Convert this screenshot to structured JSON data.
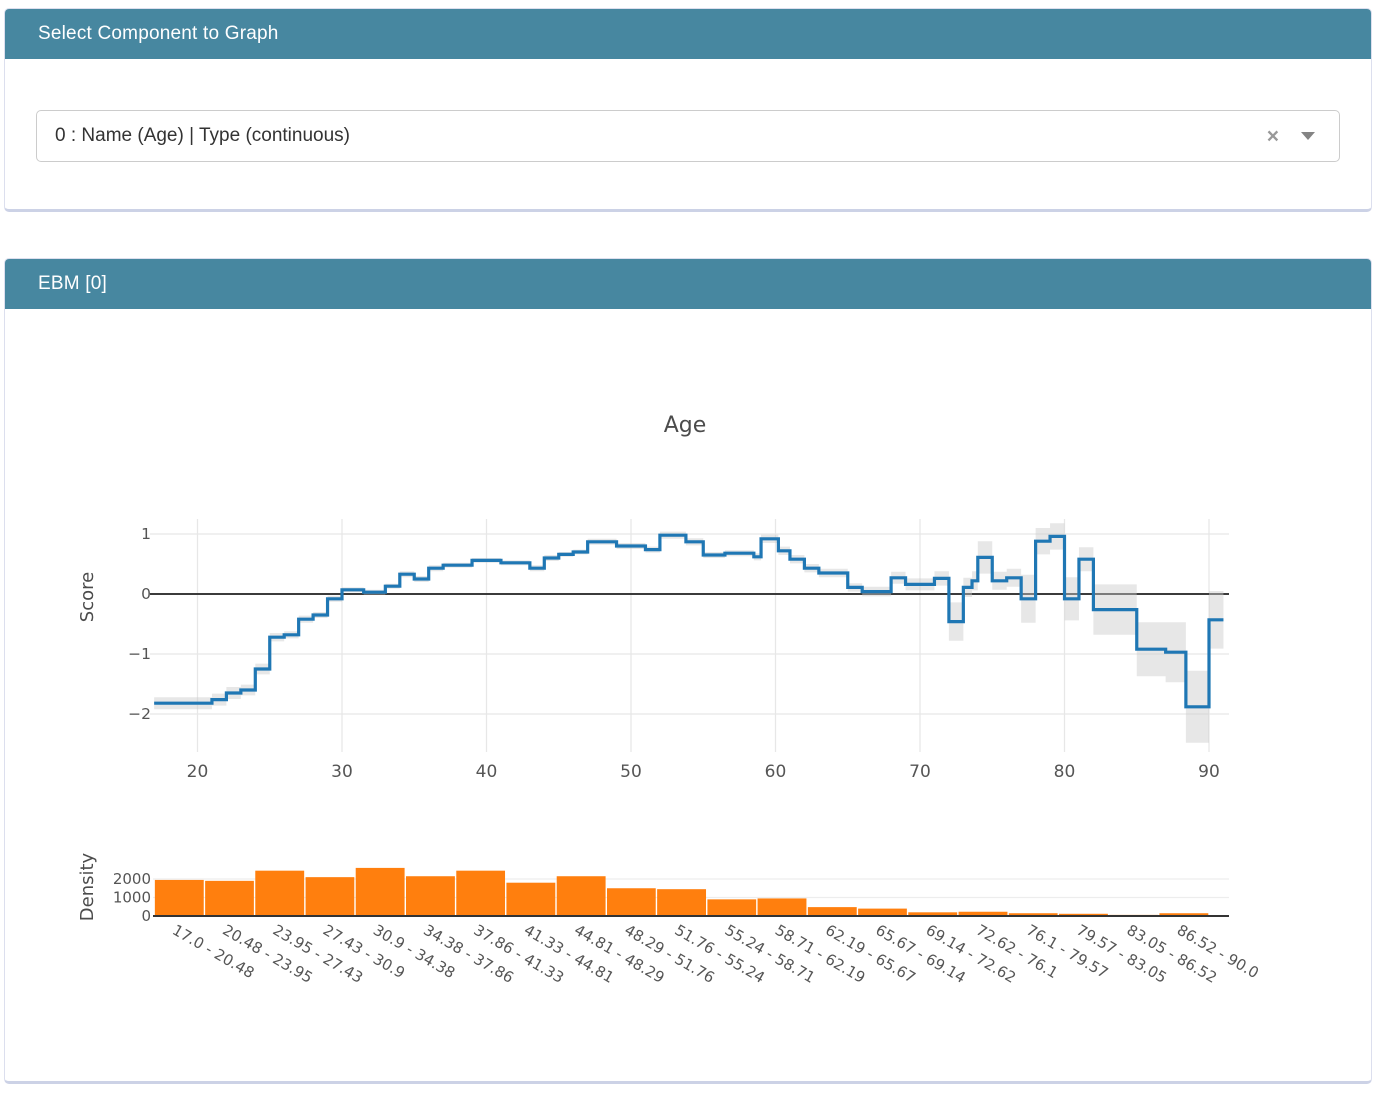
{
  "select_panel": {
    "title": "Select Component to Graph",
    "dropdown": {
      "value": "0 : Name (Age) | Type (continuous)",
      "clear_label": "×"
    }
  },
  "ebm_panel": {
    "title": "EBM [0]"
  },
  "colors": {
    "header_bg": "#4787a0",
    "line": "#1f77b4",
    "error_band": "#c9c9c9",
    "bar": "#ff7f0e",
    "zero_line": "#3b3b3b",
    "grid": "#e7e7e7",
    "axis_text": "#555555",
    "title_text": "#4c4c4c",
    "density_baseline": "#333333"
  },
  "chart_data": [
    {
      "type": "line",
      "style": "step",
      "title": "Age",
      "ylabel": "Score",
      "xticks": [
        20,
        30,
        40,
        50,
        60,
        70,
        80,
        90
      ],
      "yticks": [
        1,
        0,
        -1,
        -2
      ],
      "x_end": 91,
      "note": "steps = [x_start, score, error_half_width]; step holds until next x_start",
      "steps": [
        [
          17.0,
          -1.82,
          0.1
        ],
        [
          21.0,
          -1.76,
          0.1
        ],
        [
          22.0,
          -1.65,
          0.1
        ],
        [
          23.0,
          -1.6,
          0.09
        ],
        [
          24.0,
          -1.25,
          0.09
        ],
        [
          25.0,
          -0.72,
          0.07
        ],
        [
          26.0,
          -0.68,
          0.06
        ],
        [
          27.0,
          -0.42,
          0.06
        ],
        [
          28.0,
          -0.35,
          0.05
        ],
        [
          29.0,
          -0.08,
          0.05
        ],
        [
          30.0,
          0.07,
          0.04
        ],
        [
          31.5,
          0.03,
          0.04
        ],
        [
          33.0,
          0.13,
          0.04
        ],
        [
          34.0,
          0.33,
          0.05
        ],
        [
          35.0,
          0.25,
          0.05
        ],
        [
          36.0,
          0.43,
          0.05
        ],
        [
          37.0,
          0.48,
          0.04
        ],
        [
          39.0,
          0.56,
          0.04
        ],
        [
          41.0,
          0.52,
          0.04
        ],
        [
          43.0,
          0.43,
          0.05
        ],
        [
          44.0,
          0.6,
          0.05
        ],
        [
          45.0,
          0.66,
          0.04
        ],
        [
          46.0,
          0.7,
          0.04
        ],
        [
          47.0,
          0.87,
          0.05
        ],
        [
          49.0,
          0.8,
          0.05
        ],
        [
          51.0,
          0.74,
          0.05
        ],
        [
          52.0,
          0.98,
          0.06
        ],
        [
          53.8,
          0.87,
          0.06
        ],
        [
          55.0,
          0.65,
          0.05
        ],
        [
          56.5,
          0.68,
          0.05
        ],
        [
          58.5,
          0.62,
          0.06
        ],
        [
          59.0,
          0.92,
          0.07
        ],
        [
          60.2,
          0.72,
          0.07
        ],
        [
          61.0,
          0.58,
          0.07
        ],
        [
          62.0,
          0.43,
          0.07
        ],
        [
          63.0,
          0.35,
          0.07
        ],
        [
          65.0,
          0.11,
          0.07
        ],
        [
          66.0,
          0.04,
          0.08
        ],
        [
          68.0,
          0.27,
          0.1
        ],
        [
          69.0,
          0.16,
          0.1
        ],
        [
          71.0,
          0.26,
          0.12
        ],
        [
          72.0,
          -0.46,
          0.32
        ],
        [
          73.0,
          0.11,
          0.16
        ],
        [
          73.6,
          0.22,
          0.16
        ],
        [
          74.0,
          0.61,
          0.27
        ],
        [
          75.0,
          0.22,
          0.15
        ],
        [
          76.0,
          0.27,
          0.15
        ],
        [
          77.0,
          -0.08,
          0.4
        ],
        [
          78.0,
          0.88,
          0.22
        ],
        [
          79.0,
          0.96,
          0.22
        ],
        [
          80.0,
          -0.08,
          0.36
        ],
        [
          81.0,
          0.58,
          0.2
        ],
        [
          82.0,
          -0.26,
          0.42
        ],
        [
          85.0,
          -0.92,
          0.45
        ],
        [
          87.0,
          -0.97,
          0.5
        ],
        [
          88.4,
          -1.88,
          0.6
        ],
        [
          90.0,
          -0.43,
          0.48
        ]
      ]
    },
    {
      "type": "bar",
      "ylabel": "Density",
      "yticks": [
        0,
        1000,
        2000
      ],
      "bin_edges": [
        17.0,
        20.48,
        23.95,
        27.43,
        30.9,
        34.38,
        37.86,
        41.33,
        44.81,
        48.29,
        51.76,
        55.24,
        58.71,
        62.19,
        65.67,
        69.14,
        72.62,
        76.1,
        79.57,
        83.05,
        86.52,
        90.0
      ],
      "categories": [
        "17.0 - 20.48",
        "20.48 - 23.95",
        "23.95 - 27.43",
        "27.43 - 30.9",
        "30.9 - 34.38",
        "34.38 - 37.86",
        "37.86 - 41.33",
        "41.33 - 44.81",
        "44.81 - 48.29",
        "48.29 - 51.76",
        "51.76 - 55.24",
        "55.24 - 58.71",
        "58.71 - 62.19",
        "62.19 - 65.67",
        "65.67 - 69.14",
        "69.14 - 72.62",
        "72.62 - 76.1",
        "76.1 - 79.57",
        "79.57 - 83.05",
        "83.05 - 86.52",
        "86.52 - 90.0"
      ],
      "values": [
        1950,
        1900,
        2450,
        2100,
        2600,
        2150,
        2450,
        1800,
        2150,
        1500,
        1450,
        900,
        950,
        480,
        400,
        200,
        230,
        150,
        120,
        60,
        150
      ]
    }
  ]
}
